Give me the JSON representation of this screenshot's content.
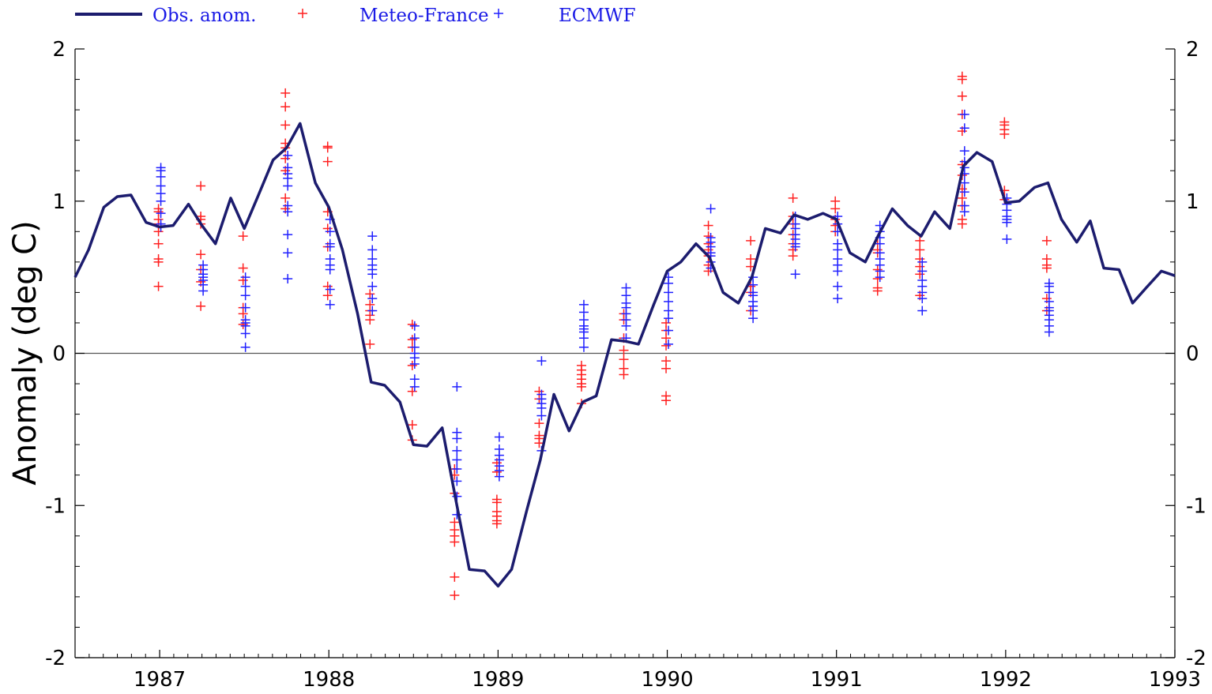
{
  "chart_data": {
    "type": "line",
    "ylabel": "Anomaly (deg C)",
    "xlim": [
      1986.5,
      1993.0
    ],
    "ylim": [
      -2,
      2
    ],
    "x_ticks": [
      "1987",
      "1988",
      "1989",
      "1990",
      "1991",
      "1992",
      "1993"
    ],
    "y_ticks_left": [
      "2",
      "1",
      "0",
      "-1",
      "-2"
    ],
    "y_ticks_right": [
      "2",
      "1",
      "0",
      "-1",
      "-2"
    ],
    "zero_line": true,
    "grid": false,
    "legend_position": "top-left",
    "legend": [
      {
        "label": "Obs. anom.",
        "marker": "line",
        "color": "#1c1c6e"
      },
      {
        "label": "Meteo-France",
        "marker": "+",
        "color": "#ff2020"
      },
      {
        "label": "ECMWF",
        "marker": "+",
        "color": "#2020ff"
      }
    ],
    "series": [
      {
        "name": "Obs. anom.",
        "kind": "line",
        "color": "#1c1c6e",
        "points": [
          [
            1986.5,
            0.5
          ],
          [
            1986.58,
            0.68
          ],
          [
            1986.67,
            0.96
          ],
          [
            1986.75,
            1.03
          ],
          [
            1986.83,
            1.04
          ],
          [
            1986.92,
            0.86
          ],
          [
            1987.0,
            0.83
          ],
          [
            1987.08,
            0.84
          ],
          [
            1987.17,
            0.98
          ],
          [
            1987.25,
            0.84
          ],
          [
            1987.33,
            0.72
          ],
          [
            1987.42,
            1.02
          ],
          [
            1987.5,
            0.82
          ],
          [
            1987.58,
            1.03
          ],
          [
            1987.67,
            1.27
          ],
          [
            1987.75,
            1.35
          ],
          [
            1987.83,
            1.51
          ],
          [
            1987.92,
            1.12
          ],
          [
            1988.0,
            0.96
          ],
          [
            1988.08,
            0.68
          ],
          [
            1988.17,
            0.26
          ],
          [
            1988.25,
            -0.19
          ],
          [
            1988.33,
            -0.21
          ],
          [
            1988.42,
            -0.32
          ],
          [
            1988.5,
            -0.6
          ],
          [
            1988.58,
            -0.61
          ],
          [
            1988.67,
            -0.49
          ],
          [
            1988.75,
            -0.96
          ],
          [
            1988.83,
            -1.42
          ],
          [
            1988.92,
            -1.43
          ],
          [
            1989.0,
            -1.53
          ],
          [
            1989.08,
            -1.42
          ],
          [
            1989.17,
            -1.03
          ],
          [
            1989.25,
            -0.7
          ],
          [
            1989.33,
            -0.27
          ],
          [
            1989.42,
            -0.51
          ],
          [
            1989.5,
            -0.32
          ],
          [
            1989.58,
            -0.28
          ],
          [
            1989.67,
            0.09
          ],
          [
            1989.75,
            0.08
          ],
          [
            1989.83,
            0.06
          ],
          [
            1989.92,
            0.32
          ],
          [
            1990.0,
            0.54
          ],
          [
            1990.08,
            0.6
          ],
          [
            1990.17,
            0.72
          ],
          [
            1990.25,
            0.63
          ],
          [
            1990.33,
            0.4
          ],
          [
            1990.42,
            0.33
          ],
          [
            1990.5,
            0.5
          ],
          [
            1990.58,
            0.82
          ],
          [
            1990.67,
            0.79
          ],
          [
            1990.75,
            0.91
          ],
          [
            1990.83,
            0.88
          ],
          [
            1990.92,
            0.92
          ],
          [
            1991.0,
            0.88
          ],
          [
            1991.08,
            0.66
          ],
          [
            1991.17,
            0.6
          ],
          [
            1991.25,
            0.78
          ],
          [
            1991.33,
            0.95
          ],
          [
            1991.42,
            0.84
          ],
          [
            1991.5,
            0.77
          ],
          [
            1991.58,
            0.93
          ],
          [
            1991.67,
            0.82
          ],
          [
            1991.75,
            1.23
          ],
          [
            1991.83,
            1.32
          ],
          [
            1991.92,
            1.26
          ],
          [
            1992.0,
            0.99
          ],
          [
            1992.08,
            1.0
          ],
          [
            1992.17,
            1.09
          ],
          [
            1992.25,
            1.12
          ],
          [
            1992.33,
            0.88
          ],
          [
            1992.42,
            0.73
          ],
          [
            1992.5,
            0.87
          ],
          [
            1992.58,
            0.56
          ],
          [
            1992.67,
            0.55
          ],
          [
            1992.75,
            0.33
          ],
          [
            1992.83,
            0.43
          ],
          [
            1992.92,
            0.54
          ],
          [
            1993.0,
            0.51
          ]
        ]
      },
      {
        "name": "Meteo-France",
        "kind": "markers",
        "color": "#ff2020",
        "groups": [
          {
            "x": 1987.0,
            "y": [
              0.44,
              0.6,
              0.62,
              0.72,
              0.8,
              0.85,
              0.88,
              0.93,
              0.95
            ]
          },
          {
            "x": 1987.25,
            "y": [
              0.31,
              0.47,
              0.55,
              0.65,
              0.85,
              0.88,
              0.9,
              1.1
            ]
          },
          {
            "x": 1987.5,
            "y": [
              0.19,
              0.26,
              0.3,
              0.48,
              0.56,
              0.77
            ]
          },
          {
            "x": 1987.75,
            "y": [
              0.95,
              1.02,
              1.2,
              1.28,
              1.35,
              1.38,
              1.5,
              1.62,
              1.71
            ]
          },
          {
            "x": 1988.0,
            "y": [
              0.38,
              0.44,
              0.7,
              0.82,
              0.93,
              1.26,
              1.35,
              1.36
            ]
          },
          {
            "x": 1988.25,
            "y": [
              0.06,
              0.22,
              0.25,
              0.28,
              0.32,
              0.39
            ]
          },
          {
            "x": 1988.5,
            "y": [
              -0.57,
              -0.47,
              -0.25,
              -0.08,
              0.04,
              0.09,
              0.19
            ]
          },
          {
            "x": 1988.75,
            "y": [
              -1.59,
              -1.47,
              -1.24,
              -1.2,
              -1.16,
              -1.11,
              -0.92,
              -0.8,
              -0.76
            ]
          },
          {
            "x": 1989.0,
            "y": [
              -1.12,
              -1.1,
              -1.07,
              -1.04,
              -0.98,
              -0.96,
              -0.78,
              -0.72
            ]
          },
          {
            "x": 1989.25,
            "y": [
              -0.59,
              -0.56,
              -0.54,
              -0.46,
              -0.3,
              -0.25
            ]
          },
          {
            "x": 1989.5,
            "y": [
              -0.33,
              -0.22,
              -0.2,
              -0.17,
              -0.14,
              -0.11,
              -0.08
            ]
          },
          {
            "x": 1989.75,
            "y": [
              -0.14,
              -0.1,
              -0.04,
              0.02,
              0.1,
              0.22,
              0.26
            ]
          },
          {
            "x": 1990.0,
            "y": [
              -0.31,
              -0.28,
              -0.1,
              -0.05,
              0.05,
              0.1,
              0.15,
              0.2
            ]
          },
          {
            "x": 1990.25,
            "y": [
              0.54,
              0.58,
              0.64,
              0.68,
              0.72,
              0.77,
              0.84
            ]
          },
          {
            "x": 1990.5,
            "y": [
              0.28,
              0.4,
              0.44,
              0.57,
              0.62,
              0.74
            ]
          },
          {
            "x": 1990.75,
            "y": [
              0.64,
              0.68,
              0.72,
              0.78,
              0.85,
              0.9,
              1.02
            ]
          },
          {
            "x": 1991.0,
            "y": [
              0.8,
              0.84,
              0.88,
              0.95,
              1.0
            ]
          },
          {
            "x": 1991.25,
            "y": [
              0.41,
              0.43,
              0.49,
              0.55,
              0.66,
              0.68,
              0.72
            ]
          },
          {
            "x": 1991.5,
            "y": [
              0.38,
              0.52,
              0.57,
              0.62,
              0.68,
              0.74
            ]
          },
          {
            "x": 1991.75,
            "y": [
              0.85,
              0.88,
              0.97,
              1.02,
              1.08,
              1.17,
              1.24,
              1.46,
              1.57,
              1.69,
              1.8,
              1.82
            ]
          },
          {
            "x": 1992.0,
            "y": [
              1.01,
              1.07,
              1.44,
              1.47,
              1.5,
              1.52
            ]
          },
          {
            "x": 1992.25,
            "y": [
              0.28,
              0.36,
              0.56,
              0.58,
              0.62,
              0.74
            ]
          }
        ]
      },
      {
        "name": "ECMWF",
        "kind": "markers",
        "color": "#2020ff",
        "groups": [
          {
            "x": 1987.0,
            "y": [
              0.83,
              0.85,
              0.92,
              1.0,
              1.05,
              1.1,
              1.16,
              1.2,
              1.22
            ]
          },
          {
            "x": 1987.25,
            "y": [
              0.41,
              0.45,
              0.48,
              0.5,
              0.52,
              0.55,
              0.58
            ]
          },
          {
            "x": 1987.5,
            "y": [
              0.04,
              0.13,
              0.18,
              0.2,
              0.22,
              0.3,
              0.38,
              0.44,
              0.5
            ]
          },
          {
            "x": 1987.75,
            "y": [
              0.49,
              0.66,
              0.78,
              0.93,
              0.97,
              1.1,
              1.15,
              1.18,
              1.22,
              1.3
            ]
          },
          {
            "x": 1988.0,
            "y": [
              0.32,
              0.42,
              0.55,
              0.58,
              0.62,
              0.7,
              0.72,
              0.8,
              0.88
            ]
          },
          {
            "x": 1988.25,
            "y": [
              0.28,
              0.36,
              0.44,
              0.52,
              0.55,
              0.58,
              0.62,
              0.68,
              0.77
            ]
          },
          {
            "x": 1988.5,
            "y": [
              -0.22,
              -0.17,
              -0.07,
              -0.03,
              0.0,
              0.04,
              0.1,
              0.18
            ]
          },
          {
            "x": 1988.75,
            "y": [
              -1.06,
              -0.94,
              -0.84,
              -0.76,
              -0.7,
              -0.64,
              -0.56,
              -0.52,
              -0.22
            ]
          },
          {
            "x": 1989.0,
            "y": [
              -0.81,
              -0.77,
              -0.74,
              -0.7,
              -0.67,
              -0.63,
              -0.55
            ]
          },
          {
            "x": 1989.25,
            "y": [
              -0.64,
              -0.41,
              -0.36,
              -0.33,
              -0.3,
              -0.27,
              -0.05
            ]
          },
          {
            "x": 1989.5,
            "y": [
              0.04,
              0.1,
              0.14,
              0.16,
              0.18,
              0.22,
              0.27,
              0.32
            ]
          },
          {
            "x": 1989.75,
            "y": [
              0.1,
              0.18,
              0.22,
              0.26,
              0.3,
              0.33,
              0.38,
              0.43
            ]
          },
          {
            "x": 1990.0,
            "y": [
              0.06,
              0.15,
              0.23,
              0.28,
              0.34,
              0.4,
              0.46,
              0.5
            ]
          },
          {
            "x": 1990.25,
            "y": [
              0.56,
              0.6,
              0.64,
              0.66,
              0.7,
              0.73,
              0.76,
              0.95
            ]
          },
          {
            "x": 1990.5,
            "y": [
              0.23,
              0.28,
              0.31,
              0.34,
              0.38,
              0.4,
              0.45,
              0.5
            ]
          },
          {
            "x": 1990.75,
            "y": [
              0.52,
              0.7,
              0.72,
              0.75,
              0.78,
              0.82,
              0.85,
              0.9
            ]
          },
          {
            "x": 1991.0,
            "y": [
              0.36,
              0.44,
              0.54,
              0.58,
              0.62,
              0.68,
              0.72,
              0.8,
              0.85,
              0.9
            ]
          },
          {
            "x": 1991.25,
            "y": [
              0.5,
              0.54,
              0.58,
              0.62,
              0.66,
              0.72,
              0.76,
              0.8,
              0.84
            ]
          },
          {
            "x": 1991.5,
            "y": [
              0.28,
              0.36,
              0.4,
              0.44,
              0.48,
              0.54,
              0.6
            ]
          },
          {
            "x": 1991.75,
            "y": [
              0.93,
              0.97,
              1.06,
              1.12,
              1.18,
              1.22,
              1.26,
              1.33,
              1.48,
              1.57
            ]
          },
          {
            "x": 1992.0,
            "y": [
              0.75,
              0.86,
              0.88,
              0.9,
              0.94,
              0.98,
              1.02
            ]
          },
          {
            "x": 1992.25,
            "y": [
              0.14,
              0.18,
              0.22,
              0.25,
              0.28,
              0.3,
              0.34,
              0.4,
              0.44,
              0.46
            ]
          }
        ]
      }
    ]
  }
}
